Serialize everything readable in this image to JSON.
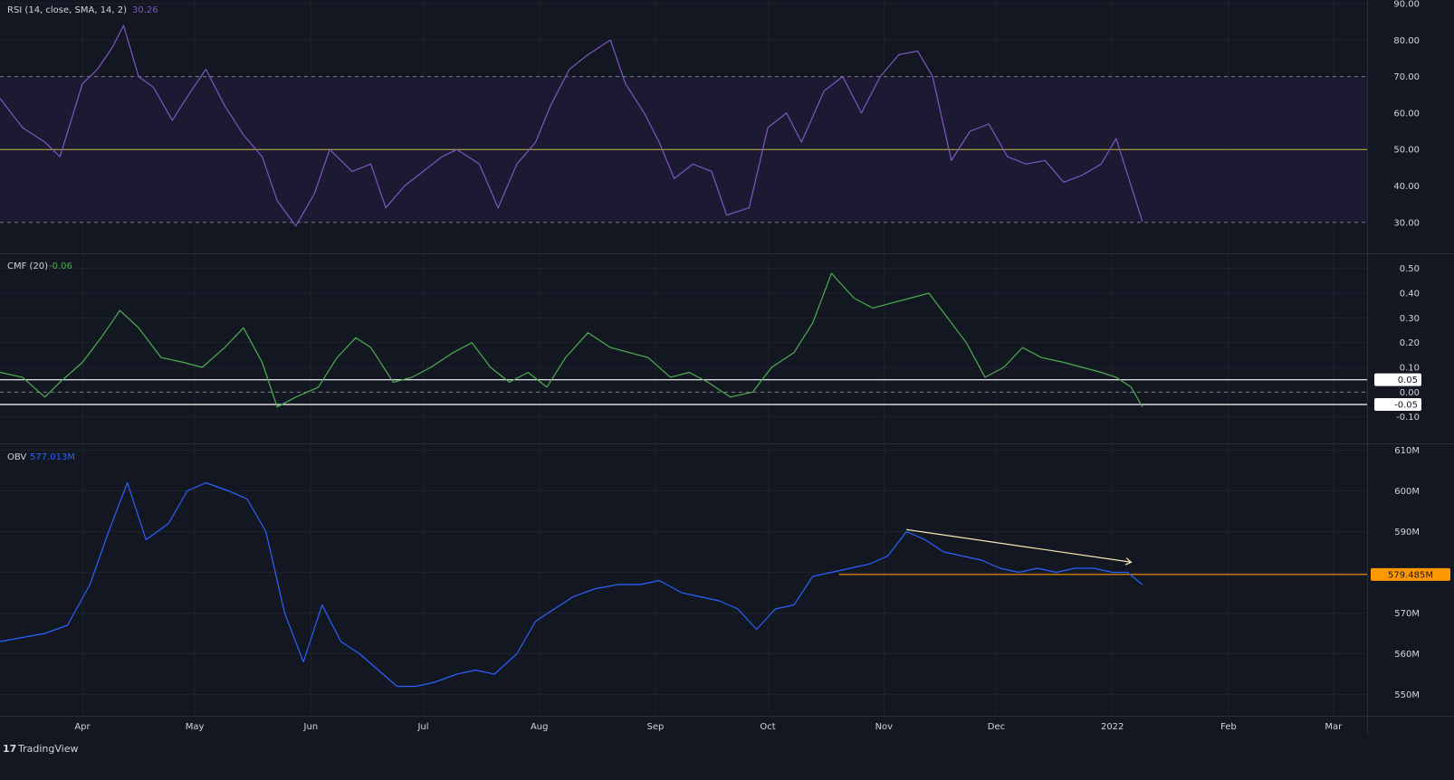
{
  "app": {
    "brand": "TradingView",
    "logo_glyph": "17"
  },
  "colors": {
    "background": "#131722",
    "grid": "#1e222d",
    "axis_text": "#d1d4dc",
    "rsi_line": "#7e57c2",
    "rsi_band": "#1e1b35",
    "rsi_mid": "#c5b83d",
    "cmf_line": "#4caf50",
    "cmf_level": "#ffffff",
    "obv_line": "#2962ff",
    "obv_level": "#ff9800",
    "obv_trend": "#f7e9b6"
  },
  "chart_data": [
    {
      "type": "line",
      "panel": "rsi",
      "title": "RSI (14, close, SMA, 14, 2)",
      "value": "30.26",
      "ylim": [
        22,
        91
      ],
      "yticks": [
        "90.00",
        "80.00",
        "70.00",
        "60.00",
        "50.00",
        "40.00",
        "30.00"
      ],
      "ytick_values": [
        90,
        80,
        70,
        60,
        50,
        40,
        30
      ],
      "band": [
        30,
        70
      ],
      "midline": 50,
      "series": [
        {
          "x": [
            "2021-03-10",
            "2021-03-16",
            "2021-03-22",
            "2021-03-26",
            "2021-04-01",
            "2021-04-05",
            "2021-04-09",
            "2021-04-12",
            "2021-04-16",
            "2021-04-20",
            "2021-04-25",
            "2021-04-30",
            "2021-05-04",
            "2021-05-09",
            "2021-05-14",
            "2021-05-19",
            "2021-05-23",
            "2021-05-28",
            "2021-06-02",
            "2021-06-06",
            "2021-06-12",
            "2021-06-17",
            "2021-06-21",
            "2021-06-26",
            "2021-07-01",
            "2021-07-06",
            "2021-07-10",
            "2021-07-16",
            "2021-07-21",
            "2021-07-26",
            "2021-07-31",
            "2021-08-04",
            "2021-08-09",
            "2021-08-14",
            "2021-08-20",
            "2021-08-24",
            "2021-08-29",
            "2021-09-02",
            "2021-09-06",
            "2021-09-11",
            "2021-09-16",
            "2021-09-20",
            "2021-09-26",
            "2021-10-01",
            "2021-10-06",
            "2021-10-10",
            "2021-10-16",
            "2021-10-21",
            "2021-10-26",
            "2021-10-31",
            "2021-11-05",
            "2021-11-10",
            "2021-11-14",
            "2021-11-19",
            "2021-11-24",
            "2021-11-29",
            "2021-12-04",
            "2021-12-09",
            "2021-12-14",
            "2021-12-19",
            "2021-12-24",
            "2021-12-29",
            "2022-01-02",
            "2022-01-06",
            "2022-01-09"
          ],
          "values": [
            64,
            56,
            52,
            48,
            68,
            72,
            78,
            84,
            70,
            67,
            58,
            66,
            72,
            62,
            54,
            48,
            36,
            29,
            38,
            50,
            44,
            46,
            34,
            40,
            44,
            48,
            50,
            46,
            34,
            46,
            52,
            62,
            72,
            76,
            80,
            68,
            60,
            52,
            42,
            46,
            44,
            32,
            34,
            56,
            60,
            52,
            66,
            70,
            60,
            70,
            76,
            77,
            70,
            47,
            55,
            57,
            48,
            46,
            47,
            41,
            43,
            46,
            53,
            40,
            30.26
          ]
        }
      ]
    },
    {
      "type": "line",
      "panel": "cmf",
      "title": "CMF (20)",
      "value": "-0.06",
      "ylim": [
        -0.2,
        0.55
      ],
      "yticks": [
        "0.50",
        "0.40",
        "0.30",
        "0.20",
        "0.10",
        "0.05",
        "0.00",
        "-0.05",
        "-0.10"
      ],
      "ytick_values": [
        0.5,
        0.4,
        0.3,
        0.2,
        0.1,
        0.05,
        0.0,
        -0.05,
        -0.1
      ],
      "levels": [
        0.05,
        -0.05
      ],
      "zero_line": 0,
      "series": [
        {
          "x": [
            "2021-03-10",
            "2021-03-16",
            "2021-03-22",
            "2021-03-26",
            "2021-04-01",
            "2021-04-06",
            "2021-04-11",
            "2021-04-16",
            "2021-04-22",
            "2021-04-28",
            "2021-05-03",
            "2021-05-09",
            "2021-05-14",
            "2021-05-19",
            "2021-05-23",
            "2021-05-28",
            "2021-06-03",
            "2021-06-08",
            "2021-06-13",
            "2021-06-17",
            "2021-06-23",
            "2021-06-28",
            "2021-07-03",
            "2021-07-09",
            "2021-07-14",
            "2021-07-19",
            "2021-07-24",
            "2021-07-29",
            "2021-08-03",
            "2021-08-08",
            "2021-08-14",
            "2021-08-20",
            "2021-08-25",
            "2021-08-30",
            "2021-09-05",
            "2021-09-10",
            "2021-09-15",
            "2021-09-21",
            "2021-09-27",
            "2021-10-02",
            "2021-10-08",
            "2021-10-13",
            "2021-10-18",
            "2021-10-24",
            "2021-10-29",
            "2021-11-03",
            "2021-11-08",
            "2021-11-13",
            "2021-11-18",
            "2021-11-23",
            "2021-11-28",
            "2021-12-03",
            "2021-12-08",
            "2021-12-13",
            "2021-12-19",
            "2021-12-24",
            "2021-12-29",
            "2022-01-02",
            "2022-01-06",
            "2022-01-09"
          ],
          "values": [
            0.08,
            0.06,
            -0.02,
            0.04,
            0.12,
            0.22,
            0.33,
            0.26,
            0.14,
            0.12,
            0.1,
            0.18,
            0.26,
            0.12,
            -0.06,
            -0.02,
            0.02,
            0.14,
            0.22,
            0.18,
            0.04,
            0.06,
            0.1,
            0.16,
            0.2,
            0.1,
            0.04,
            0.08,
            0.02,
            0.14,
            0.24,
            0.18,
            0.16,
            0.14,
            0.06,
            0.08,
            0.04,
            -0.02,
            0.0,
            0.1,
            0.16,
            0.28,
            0.48,
            0.38,
            0.34,
            0.36,
            0.38,
            0.4,
            0.3,
            0.2,
            0.06,
            0.1,
            0.18,
            0.14,
            0.12,
            0.1,
            0.08,
            0.06,
            0.02,
            -0.06
          ]
        }
      ]
    },
    {
      "type": "line",
      "panel": "obv",
      "title": "OBV",
      "value": "577.013M",
      "ylim": [
        545,
        611
      ],
      "yticks": [
        "610M",
        "600M",
        "590M",
        "580M",
        "570M",
        "560M",
        "550M"
      ],
      "ytick_values": [
        610,
        600,
        590,
        580,
        570,
        560,
        550
      ],
      "level": {
        "value": 579.485,
        "label": "579.485M",
        "from": "2021-10-20"
      },
      "trendline": {
        "from": [
          "2021-11-07",
          590.5
        ],
        "to": [
          "2022-01-06",
          582.5
        ]
      },
      "series": [
        {
          "x": [
            "2021-03-10",
            "2021-03-16",
            "2021-03-22",
            "2021-03-28",
            "2021-04-03",
            "2021-04-08",
            "2021-04-13",
            "2021-04-18",
            "2021-04-24",
            "2021-04-29",
            "2021-05-04",
            "2021-05-10",
            "2021-05-15",
            "2021-05-20",
            "2021-05-25",
            "2021-05-30",
            "2021-06-04",
            "2021-06-09",
            "2021-06-14",
            "2021-06-19",
            "2021-06-24",
            "2021-06-29",
            "2021-07-04",
            "2021-07-10",
            "2021-07-15",
            "2021-07-20",
            "2021-07-26",
            "2021-07-31",
            "2021-08-05",
            "2021-08-10",
            "2021-08-16",
            "2021-08-22",
            "2021-08-28",
            "2021-09-02",
            "2021-09-08",
            "2021-09-13",
            "2021-09-18",
            "2021-09-23",
            "2021-09-28",
            "2021-10-03",
            "2021-10-08",
            "2021-10-13",
            "2021-10-18",
            "2021-10-23",
            "2021-10-28",
            "2021-11-02",
            "2021-11-07",
            "2021-11-12",
            "2021-11-17",
            "2021-11-22",
            "2021-11-27",
            "2021-12-02",
            "2021-12-07",
            "2021-12-12",
            "2021-12-17",
            "2021-12-22",
            "2021-12-27",
            "2022-01-01",
            "2022-01-05",
            "2022-01-09"
          ],
          "values": [
            563,
            564,
            565,
            567,
            577,
            590,
            602,
            588,
            592,
            600,
            602,
            600,
            598,
            590,
            570,
            558,
            572,
            563,
            560,
            556,
            552,
            552,
            553,
            555,
            556,
            555,
            560,
            568,
            571,
            574,
            576,
            577,
            577,
            578,
            575,
            574,
            573,
            571,
            566,
            571,
            572,
            579,
            580,
            581,
            582,
            584,
            590,
            588,
            585,
            584,
            583,
            581,
            580,
            581,
            580,
            581,
            581,
            580,
            580,
            577
          ]
        }
      ]
    }
  ],
  "time_axis": {
    "labels": [
      "Apr",
      "May",
      "Jun",
      "Jul",
      "Aug",
      "Sep",
      "Oct",
      "Nov",
      "Dec",
      "2022",
      "Feb",
      "Mar"
    ],
    "dates": [
      "2021-04-01",
      "2021-05-01",
      "2021-06-01",
      "2021-07-01",
      "2021-08-01",
      "2021-09-01",
      "2021-10-01",
      "2021-11-01",
      "2021-12-01",
      "2022-01-01",
      "2022-02-01",
      "2022-03-01"
    ],
    "xlim": [
      "2021-03-10",
      "2022-03-10"
    ]
  }
}
